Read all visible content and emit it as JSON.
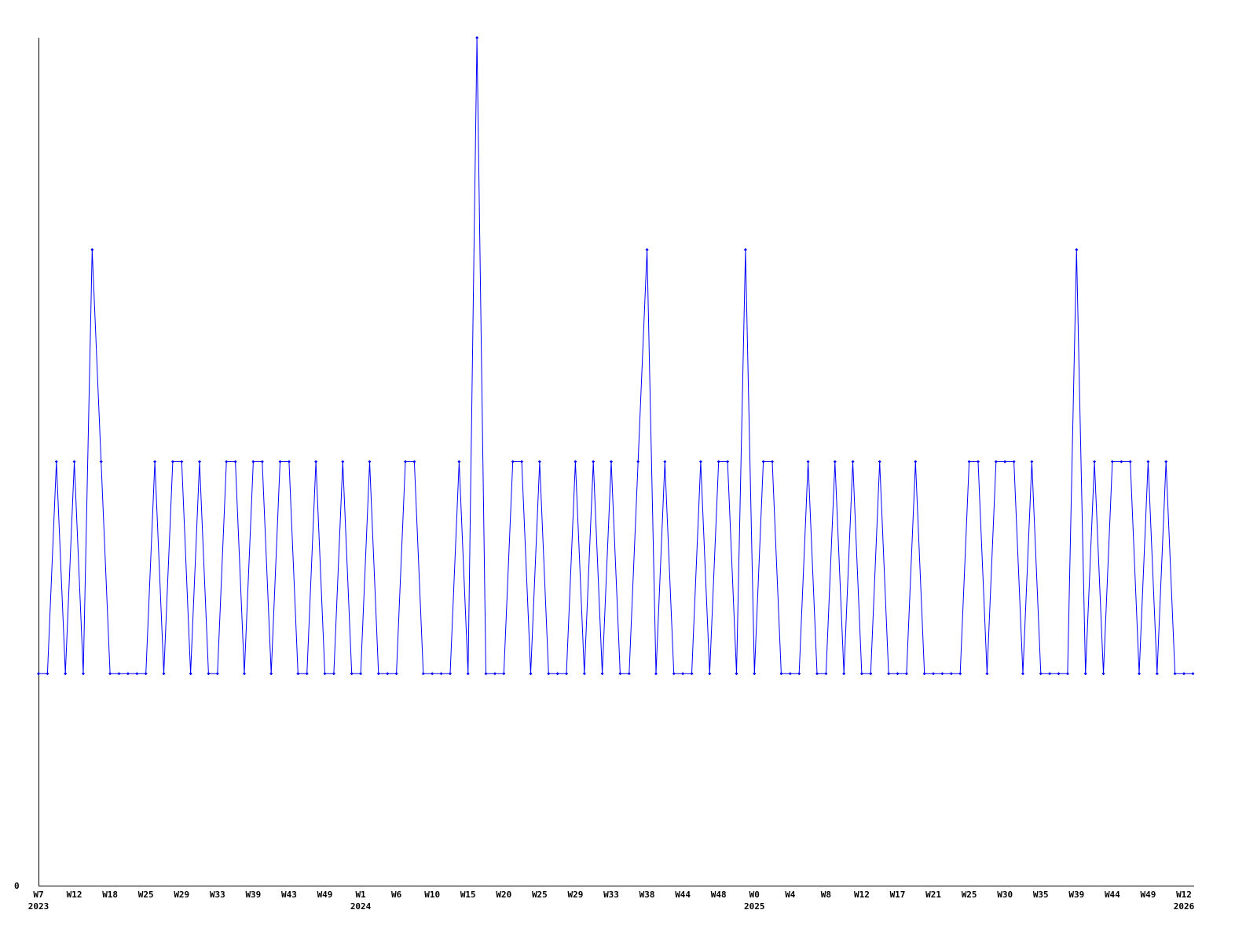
{
  "chart_data": {
    "type": "line",
    "title": "",
    "xlabel": "",
    "ylabel": "",
    "ylim": [
      0,
      4
    ],
    "yticks": [
      "0"
    ],
    "grid": false,
    "legend": "none",
    "line_color": "#0000ff",
    "axis_color": "#000000",
    "xticks": [
      {
        "label": "W7",
        "index": 0,
        "year": "2023"
      },
      {
        "label": "W12",
        "index": 4
      },
      {
        "label": "W18",
        "index": 8
      },
      {
        "label": "W25",
        "index": 12
      },
      {
        "label": "W29",
        "index": 16
      },
      {
        "label": "W33",
        "index": 20
      },
      {
        "label": "W39",
        "index": 24
      },
      {
        "label": "W43",
        "index": 28
      },
      {
        "label": "W49",
        "index": 32
      },
      {
        "label": "W1",
        "index": 36,
        "year": "2024"
      },
      {
        "label": "W6",
        "index": 40
      },
      {
        "label": "W10",
        "index": 44
      },
      {
        "label": "W15",
        "index": 48
      },
      {
        "label": "W20",
        "index": 52
      },
      {
        "label": "W25",
        "index": 56
      },
      {
        "label": "W29",
        "index": 60
      },
      {
        "label": "W33",
        "index": 64
      },
      {
        "label": "W38",
        "index": 68
      },
      {
        "label": "W44",
        "index": 72
      },
      {
        "label": "W48",
        "index": 76
      },
      {
        "label": "W0",
        "index": 80,
        "year": "2025"
      },
      {
        "label": "W4",
        "index": 84
      },
      {
        "label": "W8",
        "index": 88
      },
      {
        "label": "W12",
        "index": 92
      },
      {
        "label": "W17",
        "index": 96
      },
      {
        "label": "W21",
        "index": 100
      },
      {
        "label": "W25",
        "index": 104
      },
      {
        "label": "W30",
        "index": 108
      },
      {
        "label": "W35",
        "index": 112
      },
      {
        "label": "W39",
        "index": 116
      },
      {
        "label": "W44",
        "index": 120
      },
      {
        "label": "W49",
        "index": 124
      },
      {
        "label": "W12",
        "index": 128,
        "year": "2026"
      }
    ],
    "values": [
      1,
      1,
      2,
      1,
      2,
      1,
      3,
      2,
      1,
      1,
      1,
      1,
      1,
      2,
      1,
      2,
      2,
      1,
      2,
      1,
      1,
      2,
      2,
      1,
      2,
      2,
      1,
      2,
      2,
      1,
      1,
      2,
      1,
      1,
      2,
      1,
      1,
      2,
      1,
      1,
      1,
      2,
      2,
      1,
      1,
      1,
      1,
      2,
      1,
      4,
      1,
      1,
      1,
      2,
      2,
      1,
      2,
      1,
      1,
      1,
      2,
      1,
      2,
      1,
      2,
      1,
      1,
      2,
      3,
      1,
      2,
      1,
      1,
      1,
      2,
      1,
      2,
      2,
      1,
      3,
      1,
      2,
      2,
      1,
      1,
      1,
      2,
      1,
      1,
      2,
      1,
      2,
      1,
      1,
      2,
      1,
      1,
      1,
      2,
      1,
      1,
      1,
      1,
      1,
      2,
      2,
      1,
      2,
      2,
      2,
      1,
      2,
      1,
      1,
      1,
      1,
      3,
      1,
      2,
      1,
      2,
      2,
      2,
      1,
      2,
      1,
      2,
      1,
      1,
      1
    ]
  }
}
